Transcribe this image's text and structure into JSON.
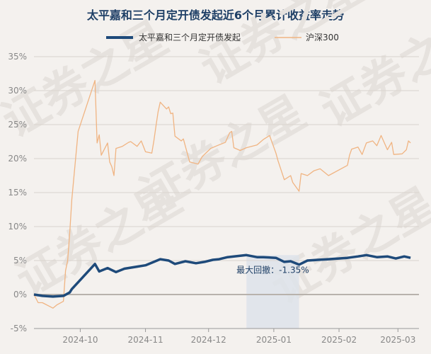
{
  "chart_data": {
    "type": "line",
    "title": "太平嘉和三个月定开债发起近6个月累计收益率走势",
    "xlabel": "",
    "ylabel": "",
    "ylim": [
      -5,
      35
    ],
    "y_ticks": [
      "-5%",
      "0%",
      "5%",
      "10%",
      "15%",
      "20%",
      "25%",
      "30%",
      "35%"
    ],
    "x_ticks": [
      "2024-10",
      "2024-11",
      "2024-12",
      "2025-01",
      "2025-02",
      "2025-03"
    ],
    "grid": "horizontal",
    "legend_position": "top",
    "watermark": "证券之星",
    "drawdown_annotation": {
      "label": "最大回撤：-1.35%",
      "start": "2024-12-19",
      "end": "2025-01-13"
    },
    "colors": {
      "fund": "#1e4a7a",
      "index": "#f0b482",
      "grid": "#d9d4cf",
      "zero_line": "#b8b2ac",
      "drawdown_fill": "#dde3ea"
    },
    "series": [
      {
        "name": "太平嘉和三个月定开债发起",
        "points": [
          [
            "2024-09-09",
            0.0
          ],
          [
            "2024-09-13",
            -0.2
          ],
          [
            "2024-09-18",
            -0.3
          ],
          [
            "2024-09-23",
            -0.2
          ],
          [
            "2024-09-26",
            0.3
          ],
          [
            "2024-09-27",
            0.8
          ],
          [
            "2024-09-30",
            1.8
          ],
          [
            "2024-10-08",
            4.5
          ],
          [
            "2024-10-10",
            3.4
          ],
          [
            "2024-10-14",
            3.9
          ],
          [
            "2024-10-18",
            3.3
          ],
          [
            "2024-10-22",
            3.8
          ],
          [
            "2024-10-28",
            4.1
          ],
          [
            "2024-11-01",
            4.3
          ],
          [
            "2024-11-05",
            4.8
          ],
          [
            "2024-11-08",
            5.2
          ],
          [
            "2024-11-12",
            5.0
          ],
          [
            "2024-11-15",
            4.5
          ],
          [
            "2024-11-20",
            4.9
          ],
          [
            "2024-11-25",
            4.6
          ],
          [
            "2024-11-29",
            4.8
          ],
          [
            "2024-12-03",
            5.1
          ],
          [
            "2024-12-06",
            5.2
          ],
          [
            "2024-12-10",
            5.5
          ],
          [
            "2024-12-13",
            5.6
          ],
          [
            "2024-12-19",
            5.8
          ],
          [
            "2024-12-24",
            5.5
          ],
          [
            "2024-12-27",
            5.5
          ],
          [
            "2025-01-02",
            5.4
          ],
          [
            "2025-01-06",
            4.8
          ],
          [
            "2025-01-09",
            4.9
          ],
          [
            "2025-01-13",
            4.4
          ],
          [
            "2025-01-17",
            5.0
          ],
          [
            "2025-01-22",
            5.1
          ],
          [
            "2025-01-27",
            5.2
          ],
          [
            "2025-02-05",
            5.4
          ],
          [
            "2025-02-10",
            5.6
          ],
          [
            "2025-02-14",
            5.8
          ],
          [
            "2025-02-19",
            5.5
          ],
          [
            "2025-02-24",
            5.6
          ],
          [
            "2025-02-28",
            5.3
          ],
          [
            "2025-03-04",
            5.6
          ],
          [
            "2025-03-07",
            5.4
          ]
        ]
      },
      {
        "name": "沪深300",
        "points": [
          [
            "2024-09-09",
            0.0
          ],
          [
            "2024-09-11",
            -1.2
          ],
          [
            "2024-09-13",
            -1.2
          ],
          [
            "2024-09-18",
            -2.0
          ],
          [
            "2024-09-20",
            -1.5
          ],
          [
            "2024-09-23",
            -1.0
          ],
          [
            "2024-09-24",
            3.5
          ],
          [
            "2024-09-25",
            5.0
          ],
          [
            "2024-09-26",
            9.0
          ],
          [
            "2024-09-27",
            14.0
          ],
          [
            "2024-09-30",
            24.0
          ],
          [
            "2024-10-08",
            31.5
          ],
          [
            "2024-10-09",
            22.3
          ],
          [
            "2024-10-10",
            23.5
          ],
          [
            "2024-10-11",
            20.5
          ],
          [
            "2024-10-14",
            22.3
          ],
          [
            "2024-10-15",
            19.5
          ],
          [
            "2024-10-16",
            18.8
          ],
          [
            "2024-10-17",
            17.5
          ],
          [
            "2024-10-18",
            21.5
          ],
          [
            "2024-10-21",
            21.8
          ],
          [
            "2024-10-24",
            22.4
          ],
          [
            "2024-10-25",
            22.5
          ],
          [
            "2024-10-28",
            21.8
          ],
          [
            "2024-10-30",
            22.6
          ],
          [
            "2024-11-01",
            21.0
          ],
          [
            "2024-11-04",
            20.8
          ],
          [
            "2024-11-05",
            22.6
          ],
          [
            "2024-11-06",
            24.8
          ],
          [
            "2024-11-07",
            26.9
          ],
          [
            "2024-11-08",
            28.3
          ],
          [
            "2024-11-11",
            27.3
          ],
          [
            "2024-11-12",
            27.6
          ],
          [
            "2024-11-13",
            26.6
          ],
          [
            "2024-11-14",
            26.7
          ],
          [
            "2024-11-15",
            23.3
          ],
          [
            "2024-11-18",
            22.6
          ],
          [
            "2024-11-19",
            22.9
          ],
          [
            "2024-11-22",
            19.5
          ],
          [
            "2024-11-26",
            19.2
          ],
          [
            "2024-11-28",
            20.3
          ],
          [
            "2024-12-02",
            21.5
          ],
          [
            "2024-12-05",
            21.9
          ],
          [
            "2024-12-09",
            22.4
          ],
          [
            "2024-12-11",
            23.8
          ],
          [
            "2024-12-12",
            24.0
          ],
          [
            "2024-12-13",
            21.6
          ],
          [
            "2024-12-16",
            21.2
          ],
          [
            "2024-12-19",
            21.6
          ],
          [
            "2024-12-24",
            22.0
          ],
          [
            "2024-12-27",
            22.8
          ],
          [
            "2024-12-30",
            23.4
          ],
          [
            "2025-01-02",
            20.8
          ],
          [
            "2025-01-03",
            19.7
          ],
          [
            "2025-01-06",
            16.9
          ],
          [
            "2025-01-09",
            17.5
          ],
          [
            "2025-01-10",
            16.5
          ],
          [
            "2025-01-13",
            15.2
          ],
          [
            "2025-01-14",
            17.8
          ],
          [
            "2025-01-17",
            17.5
          ],
          [
            "2025-01-20",
            18.2
          ],
          [
            "2025-01-23",
            18.5
          ],
          [
            "2025-01-27",
            17.5
          ],
          [
            "2025-02-05",
            19.0
          ],
          [
            "2025-02-06",
            20.5
          ],
          [
            "2025-02-07",
            21.4
          ],
          [
            "2025-02-10",
            21.7
          ],
          [
            "2025-02-12",
            20.6
          ],
          [
            "2025-02-14",
            22.3
          ],
          [
            "2025-02-17",
            22.6
          ],
          [
            "2025-02-19",
            21.9
          ],
          [
            "2025-02-21",
            23.4
          ],
          [
            "2025-02-24",
            21.3
          ],
          [
            "2025-02-26",
            22.4
          ],
          [
            "2025-02-27",
            20.6
          ],
          [
            "2025-03-03",
            20.7
          ],
          [
            "2025-03-05",
            21.3
          ],
          [
            "2025-03-06",
            22.6
          ],
          [
            "2025-03-07",
            22.3
          ]
        ]
      }
    ]
  }
}
